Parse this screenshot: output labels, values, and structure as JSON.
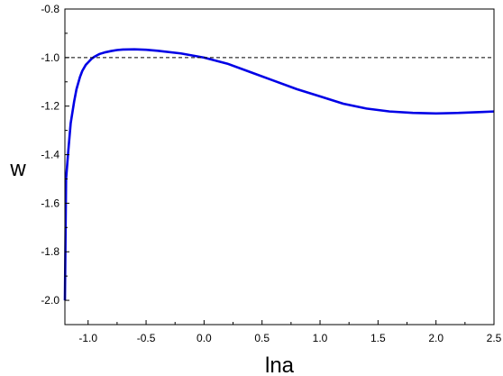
{
  "chart_data": {
    "type": "line",
    "title": "",
    "xlabel": "lna",
    "ylabel": "w",
    "xlim": [
      -1.2,
      2.5
    ],
    "ylim": [
      -2.1,
      -0.8
    ],
    "grid": false,
    "xticks": [
      -1.0,
      -0.5,
      0.0,
      0.5,
      1.0,
      1.5,
      2.0,
      2.5
    ],
    "xtick_labels": [
      "-1.0",
      "-0.5",
      "0.0",
      "0.5",
      "1.0",
      "1.5",
      "2.0",
      "2.5"
    ],
    "yticks": [
      -2.0,
      -1.8,
      -1.6,
      -1.4,
      -1.2,
      -1.0,
      -0.8
    ],
    "ytick_labels": [
      "-2.0",
      "-1.8",
      "-1.6",
      "-1.4",
      "-1.2",
      "-1.0",
      "-0.8"
    ],
    "series": [
      {
        "color": "#0000e6",
        "style": "solid",
        "x": [
          -1.2,
          -1.19,
          -1.17,
          -1.15,
          -1.12,
          -1.1,
          -1.07,
          -1.05,
          -1.02,
          -1.0,
          -0.97,
          -0.95,
          -0.92,
          -0.9,
          -0.85,
          -0.8,
          -0.75,
          -0.7,
          -0.6,
          -0.5,
          -0.4,
          -0.2,
          0.0,
          0.2,
          0.4,
          0.6,
          0.8,
          1.0,
          1.2,
          1.4,
          1.6,
          1.8,
          2.0,
          2.2,
          2.4,
          2.5
        ],
        "y": [
          -2.0,
          -1.5,
          -1.38,
          -1.27,
          -1.18,
          -1.13,
          -1.08,
          -1.055,
          -1.03,
          -1.02,
          -1.005,
          -0.998,
          -0.99,
          -0.985,
          -0.978,
          -0.973,
          -0.969,
          -0.967,
          -0.966,
          -0.968,
          -0.972,
          -0.983,
          -1.0,
          -1.025,
          -1.06,
          -1.095,
          -1.13,
          -1.16,
          -1.19,
          -1.21,
          -1.222,
          -1.228,
          -1.23,
          -1.228,
          -1.224,
          -1.222
        ]
      },
      {
        "color": "#000000",
        "style": "dashed",
        "x": [
          -1.2,
          2.5
        ],
        "y": [
          -1.0,
          -1.0
        ]
      }
    ]
  }
}
